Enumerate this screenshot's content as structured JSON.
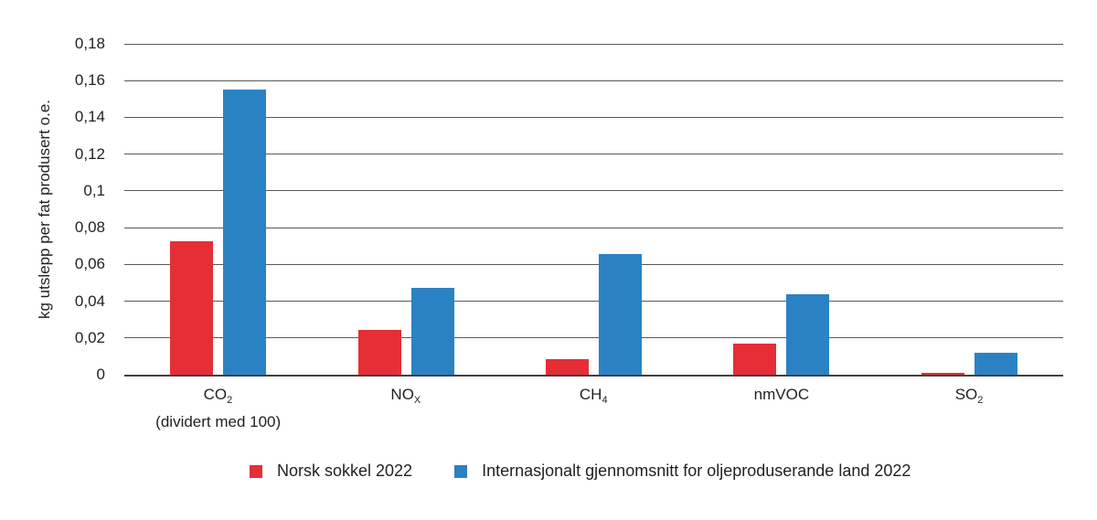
{
  "chart_data": {
    "type": "bar",
    "title": "",
    "ylabel": "kg utslepp per fat produsert o.e.",
    "xlabel": "",
    "ylim": [
      0,
      0.18
    ],
    "grid": true,
    "legend_position": "bottom",
    "yticks": [
      {
        "value": 0.18,
        "label": "0,18"
      },
      {
        "value": 0.16,
        "label": "0,16"
      },
      {
        "value": 0.14,
        "label": "0,14"
      },
      {
        "value": 0.12,
        "label": "0,12"
      },
      {
        "value": 0.1,
        "label": "0,1"
      },
      {
        "value": 0.08,
        "label": "0,08"
      },
      {
        "value": 0.06,
        "label": "0,06"
      },
      {
        "value": 0.04,
        "label": "0,04"
      },
      {
        "value": 0.02,
        "label": "0,02"
      },
      {
        "value": 0,
        "label": "0"
      }
    ],
    "categories": [
      {
        "base": "CO",
        "sub": "2",
        "note": "(dividert med 100)"
      },
      {
        "base": "NO",
        "sub": "X",
        "note": ""
      },
      {
        "base": "CH",
        "sub": "4",
        "note": ""
      },
      {
        "base": "nmVOC",
        "sub": "",
        "note": ""
      },
      {
        "base": "SO",
        "sub": "2",
        "note": ""
      }
    ],
    "series": [
      {
        "name": "Norsk sokkel 2022",
        "color": "#e62e36",
        "values": [
          0.0725,
          0.0245,
          0.0085,
          0.017,
          0.001
        ]
      },
      {
        "name": "Internasjonalt gjennomsnitt for oljeproduserande land 2022",
        "color": "#2b82c3",
        "values": [
          0.155,
          0.047,
          0.0655,
          0.044,
          0.012
        ]
      }
    ]
  },
  "colors": {
    "background": "#ffffff",
    "grid": "#59595b",
    "axis": "#414042",
    "text": "#231f20"
  }
}
